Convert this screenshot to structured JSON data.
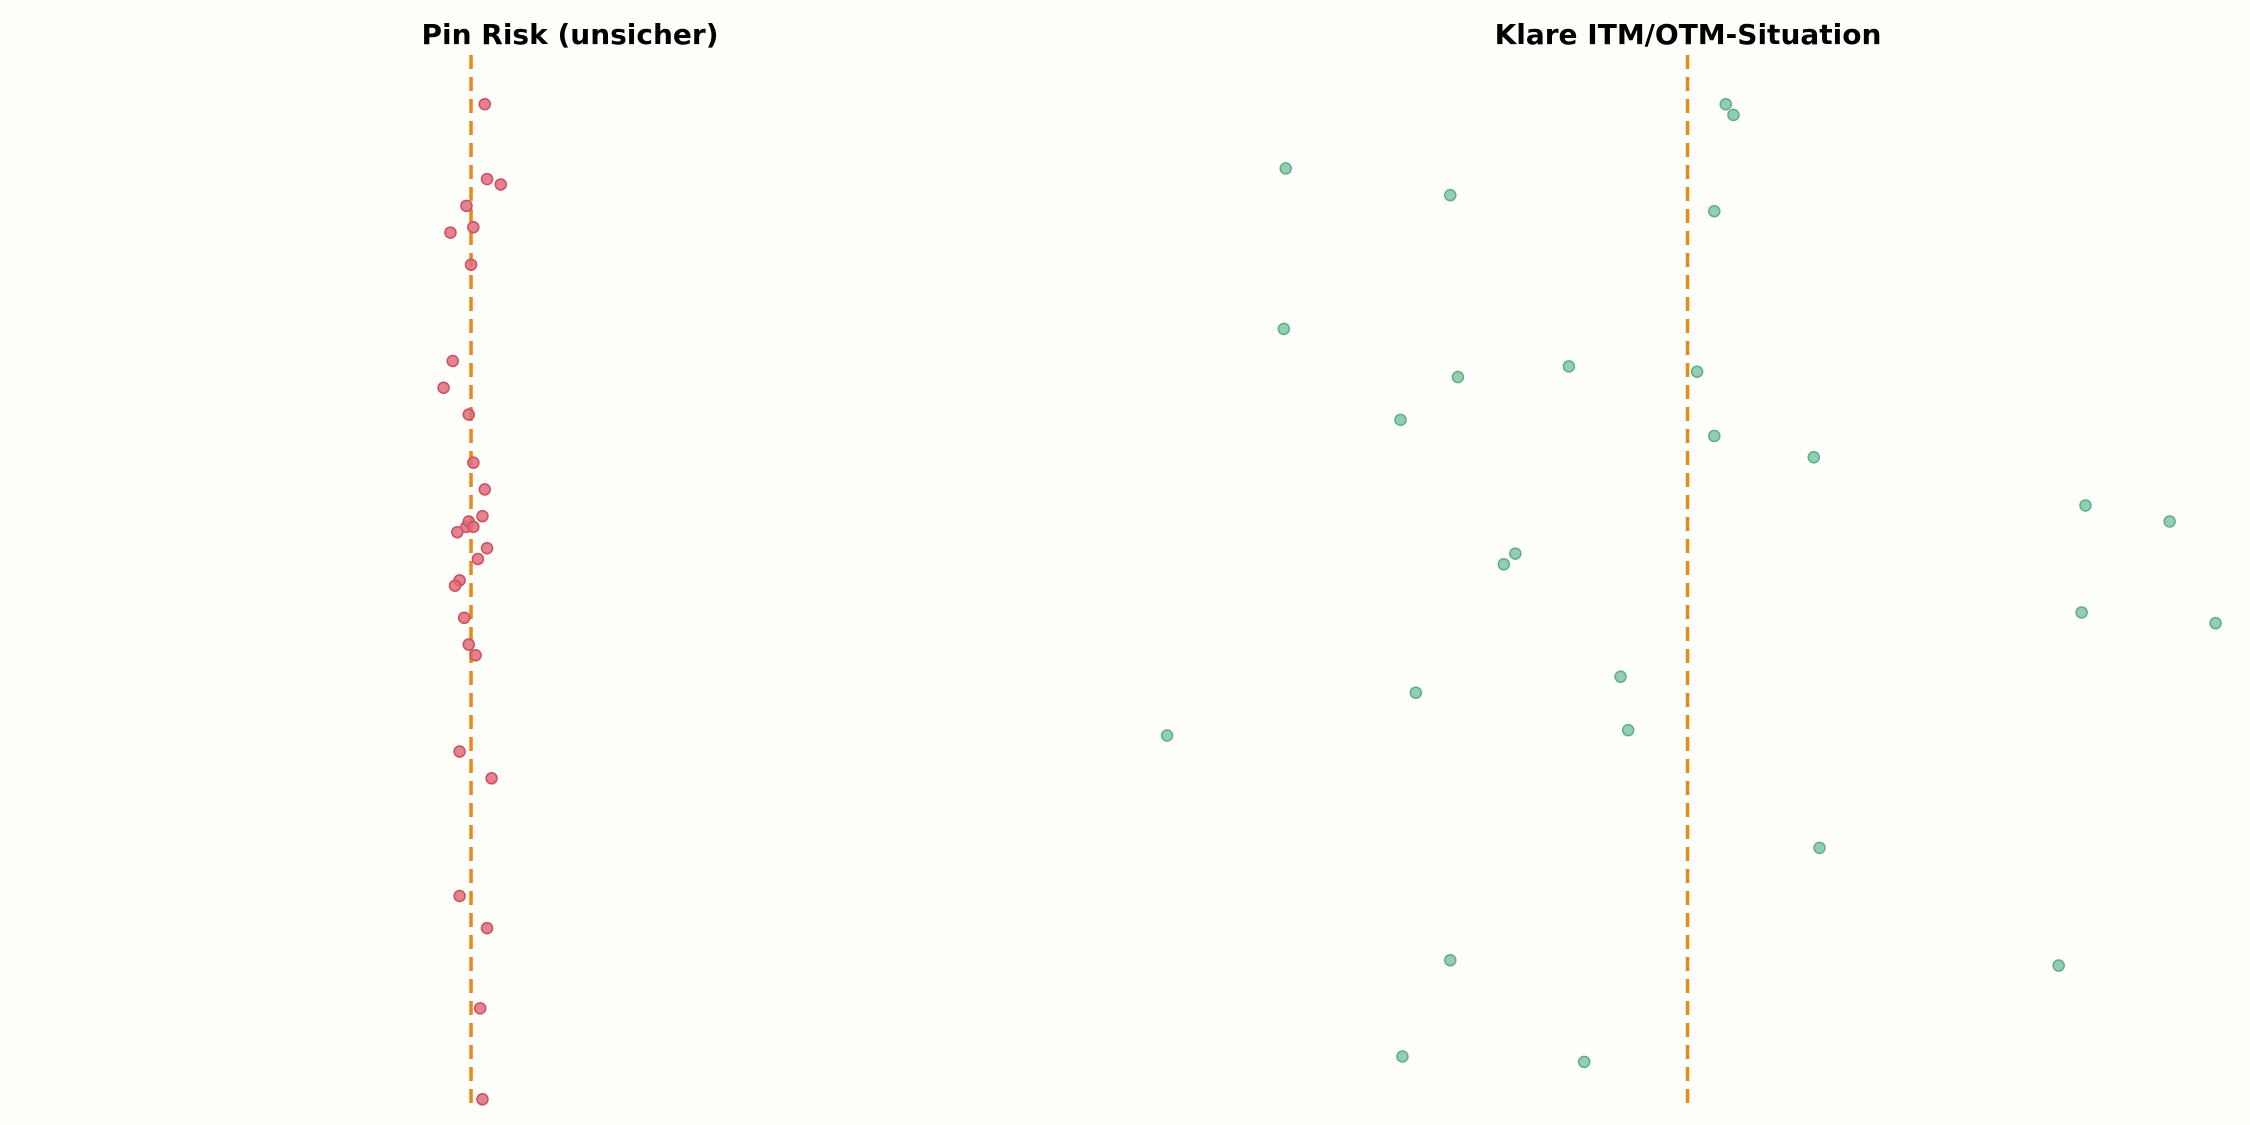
{
  "chart_data": [
    {
      "type": "scatter",
      "title": "Pin Risk (unsicher)",
      "strike": 100,
      "xlim": [
        89.7,
        114.3
      ],
      "ylim": [
        0,
        10
      ],
      "colors": {
        "points": "#e06c7b",
        "point_edge": "#cc4f61",
        "strike_line": "#e8891c"
      },
      "x": [
        100.3,
        100.35,
        100.65,
        99.9,
        99.55,
        100.05,
        100.0,
        99.6,
        99.4,
        99.95,
        100.05,
        100.3,
        100.25,
        99.9,
        99.95,
        100.05,
        99.7,
        100.35,
        100.15,
        99.75,
        99.65,
        99.85,
        99.95,
        100.1,
        99.75,
        100.45,
        99.75,
        100.35,
        100.2,
        100.25
      ],
      "y": [
        9.4,
        8.7,
        8.65,
        8.45,
        8.2,
        8.25,
        7.9,
        7.0,
        6.75,
        6.5,
        6.05,
        5.8,
        5.55,
        5.45,
        5.5,
        5.45,
        5.4,
        5.25,
        5.15,
        4.95,
        4.9,
        4.6,
        4.35,
        4.25,
        3.35,
        3.1,
        2.0,
        1.7,
        0.95,
        0.1
      ]
    },
    {
      "type": "scatter",
      "title": "Klare ITM/OTM-Situation",
      "strike": 100,
      "xlim": [
        85.3,
        114.7
      ],
      "ylim": [
        0,
        10
      ],
      "colors": {
        "points": "#7fc7a2",
        "point_edge": "#5fae88",
        "strike_line": "#e8891c"
      },
      "x": [
        101.0,
        101.2,
        89.5,
        93.8,
        100.7,
        89.45,
        94.0,
        96.9,
        100.25,
        92.5,
        100.7,
        103.3,
        110.4,
        112.6,
        95.5,
        95.2,
        113.8,
        110.3,
        98.25,
        92.9,
        86.4,
        98.45,
        103.45,
        93.8,
        109.7,
        92.55,
        97.3
      ],
      "y": [
        9.4,
        9.3,
        8.8,
        8.55,
        8.4,
        7.3,
        6.85,
        6.95,
        6.9,
        6.45,
        6.3,
        6.1,
        5.65,
        5.5,
        5.2,
        5.1,
        4.55,
        4.65,
        4.05,
        3.9,
        3.5,
        3.55,
        2.45,
        1.4,
        1.35,
        0.5,
        0.45
      ]
    }
  ]
}
